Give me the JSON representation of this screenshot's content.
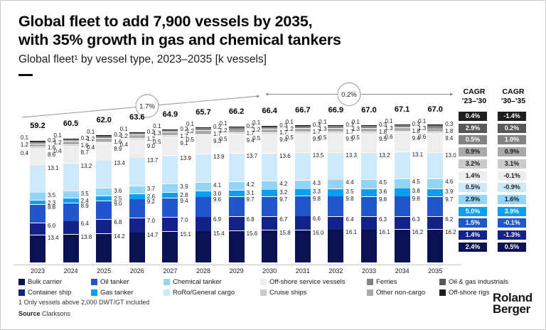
{
  "header": {
    "title_line1": "Global fleet to add 7,900 vessels by 2035,",
    "title_line2": "with 35% growth in gas and chemical tankers",
    "subtitle": "Global fleet¹ by vessel type, 2023–2035 [k vessels]"
  },
  "annotations": {
    "arrow1_label": "1.7%",
    "arrow2_label": "0.2%"
  },
  "cagr_table": {
    "col1_line1": "CAGR",
    "col1_line2": "'23–'30",
    "col2_line1": "CAGR",
    "col2_line2": "'30–'35"
  },
  "chart_data": {
    "type": "bar",
    "stacked": true,
    "unit": "k vessels",
    "categories": [
      "2023",
      "2024",
      "2025",
      "2026",
      "2027",
      "2028",
      "2029",
      "2030",
      "2031",
      "2032",
      "2033",
      "2034",
      "2035"
    ],
    "totals": [
      59.2,
      60.5,
      62.0,
      63.6,
      64.9,
      65.7,
      66.2,
      66.4,
      66.7,
      66.9,
      67.0,
      67.1,
      67.0
    ],
    "series": [
      {
        "key": "bulk_carrier",
        "name": "Bulk carrier",
        "color": "#0a1254",
        "text_color": "#ffffff",
        "cagr_23_30": "2.4%",
        "cagr_30_35": "0.5%",
        "values": [
          13.4,
          13.8,
          14.2,
          14.7,
          15.1,
          15.4,
          15.6,
          15.8,
          16.0,
          16.1,
          16.1,
          16.2,
          16.2
        ]
      },
      {
        "key": "container_ship",
        "name": "Container ship",
        "color": "#132188",
        "text_color": "#ffffff",
        "cagr_23_30": "1.4%",
        "cagr_30_35": "-1.3%",
        "values": [
          6.0,
          6.4,
          6.8,
          7.0,
          7.0,
          6.9,
          6.8,
          6.7,
          6.6,
          6.4,
          6.3,
          6.3,
          6.2
        ]
      },
      {
        "key": "oil_tanker",
        "name": "Oil tanker",
        "color": "#2058cc",
        "text_color": "#ffffff",
        "cagr_23_30": "1.5%",
        "cagr_30_35": "-0.1%",
        "values": [
          8.8,
          8.9,
          9.0,
          9.2,
          9.4,
          9.6,
          9.7,
          9.7,
          9.8,
          9.8,
          9.8,
          9.8,
          9.7
        ]
      },
      {
        "key": "gas_tanker",
        "name": "Gas tanker",
        "color": "#0b9ff1",
        "text_color": "#ffffff",
        "cagr_23_30": "5.0%",
        "cagr_30_35": "3.9%",
        "values": [
          2.3,
          2.4,
          2.5,
          2.6,
          2.8,
          3.0,
          3.1,
          3.2,
          3.3,
          3.5,
          3.6,
          3.8,
          3.9
        ]
      },
      {
        "key": "chemical_tanker",
        "name": "Chemical tanker",
        "color": "#92d5f9",
        "text_color": "#1a1a1a",
        "cagr_23_30": "2.9%",
        "cagr_30_35": "1.6%",
        "values": [
          3.5,
          3.5,
          3.6,
          3.7,
          3.9,
          4.1,
          4.2,
          4.2,
          4.3,
          4.4,
          4.5,
          4.5,
          4.6
        ]
      },
      {
        "key": "roro_general_cargo",
        "name": "RoRo/General cargo",
        "color": "#cdeafc",
        "text_color": "#1a1a1a",
        "cagr_23_30": "0.5%",
        "cagr_30_35": "-0.9%",
        "values": [
          13.1,
          13.2,
          13.4,
          13.7,
          13.9,
          13.8,
          13.7,
          13.6,
          13.5,
          13.3,
          13.2,
          13.1,
          13.0
        ]
      },
      {
        "key": "offshore_service_vessels",
        "name": "Off-shore service vessels",
        "color": "#efeeec",
        "text_color": "#1a1a1a",
        "cagr_23_30": "1.4%",
        "cagr_30_35": "-0.1%",
        "values": [
          8.6,
          8.7,
          8.9,
          9.0,
          9.1,
          9.3,
          9.4,
          9.4,
          9.5,
          9.5,
          9.5,
          9.4,
          9.4
        ]
      },
      {
        "key": "cruise_ships",
        "name": "Cruise ships",
        "color": "#cbcbc9",
        "text_color": "#1a1a1a",
        "cagr_23_30": "3.2%",
        "cagr_30_35": "3.1%",
        "values": [
          0.4,
          0.4,
          0.4,
          0.4,
          0.5,
          0.5,
          0.5,
          0.5,
          0.5,
          0.5,
          0.5,
          0.6,
          0.6
        ]
      },
      {
        "key": "other_non_cargo",
        "name": "Other non-cargo",
        "color": "#a9a9a7",
        "text_color": "#1a1a1a",
        "cagr_23_30": "0.9%",
        "cagr_30_35": "0.9%",
        "values": [
          1.6,
          1.6,
          1.6,
          1.7,
          1.7,
          1.7,
          1.7,
          1.7,
          1.7,
          1.7,
          1.8,
          1.8,
          1.8
        ]
      },
      {
        "key": "ferries",
        "name": "Ferries",
        "color": "#838381",
        "text_color": "#ffffff",
        "cagr_23_30": "0.5%",
        "cagr_30_35": "1.0%",
        "values": [
          1.2,
          1.2,
          1.2,
          1.2,
          1.3,
          1.2,
          1.2,
          1.2,
          1.2,
          1.3,
          1.3,
          1.3,
          1.3
        ]
      },
      {
        "key": "oil_gas_industrials",
        "name": "Oil & gas industrials",
        "color": "#585856",
        "text_color": "#ffffff",
        "cagr_23_30": "2.9%",
        "cagr_30_35": "0.2%",
        "values": [
          0.2,
          0.2,
          0.2,
          0.2,
          0.2,
          0.2,
          0.2,
          0.3,
          0.3,
          0.3,
          0.3,
          0.3,
          0.3
        ]
      },
      {
        "key": "offshore_rigs",
        "name": "Off-shore rigs",
        "color": "#1d1d1b",
        "text_color": "#ffffff",
        "cagr_23_30": "0.4%",
        "cagr_30_35": "-1.4%",
        "values": [
          0.1,
          0.1,
          0.1,
          0.1,
          0.1,
          0.1,
          0.1,
          0.1,
          0.1,
          0.1,
          0.1,
          0.1,
          0.1
        ]
      }
    ]
  },
  "legend_order": [
    "bulk_carrier",
    "container_ship",
    "oil_tanker",
    "gas_tanker",
    "chemical_tanker",
    "roro_general_cargo",
    "offshore_service_vessels",
    "cruise_ships",
    "ferries",
    "other_non_cargo",
    "oil_gas_industrials",
    "offshore_rigs"
  ],
  "footer": {
    "footnote": "1 Only vessels above 2,000 DWT/GT included",
    "source_label": "Source",
    "source_value": "Clarksons",
    "logo_line1": "Roland",
    "logo_line2": "Berger"
  }
}
